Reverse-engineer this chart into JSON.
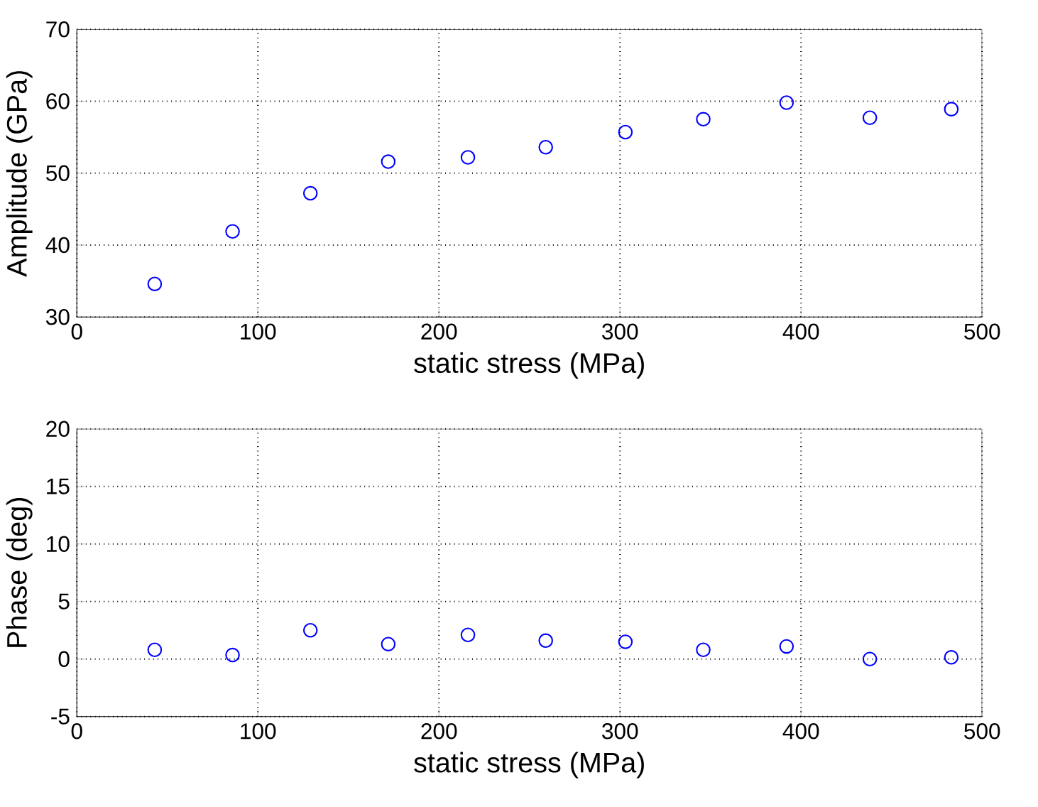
{
  "chart_data": [
    {
      "type": "scatter",
      "xlabel": "static stress (MPa)",
      "ylabel": "Amplitude (GPa)",
      "x": [
        43,
        86,
        129,
        172,
        216,
        259,
        303,
        346,
        392,
        438,
        483
      ],
      "series": [
        {
          "color": "#0000ff",
          "values": [
            34.6,
            41.9,
            47.2,
            51.6,
            52.2,
            53.6,
            55.7,
            57.5,
            59.8,
            57.7,
            58.9
          ]
        }
      ],
      "xlim": [
        0,
        500
      ],
      "xticks": [
        0,
        100,
        200,
        300,
        400,
        500
      ],
      "ylim": [
        30,
        70
      ],
      "yticks": [
        30,
        40,
        50,
        60,
        70
      ],
      "grid": true,
      "marker": "circle"
    },
    {
      "type": "scatter",
      "xlabel": "static stress (MPa)",
      "ylabel": "Phase (deg)",
      "x": [
        43,
        86,
        129,
        172,
        216,
        259,
        303,
        346,
        392,
        438,
        483
      ],
      "series": [
        {
          "color": "#0000ff",
          "values": [
            0.8,
            0.35,
            2.5,
            1.3,
            2.1,
            1.6,
            1.5,
            0.8,
            1.1,
            0,
            0.15
          ]
        }
      ],
      "xlim": [
        0,
        500
      ],
      "xticks": [
        0,
        100,
        200,
        300,
        400,
        500
      ],
      "ylim": [
        -5,
        20
      ],
      "yticks": [
        -5,
        0,
        5,
        10,
        15,
        20
      ],
      "grid": true,
      "marker": "circle"
    }
  ]
}
